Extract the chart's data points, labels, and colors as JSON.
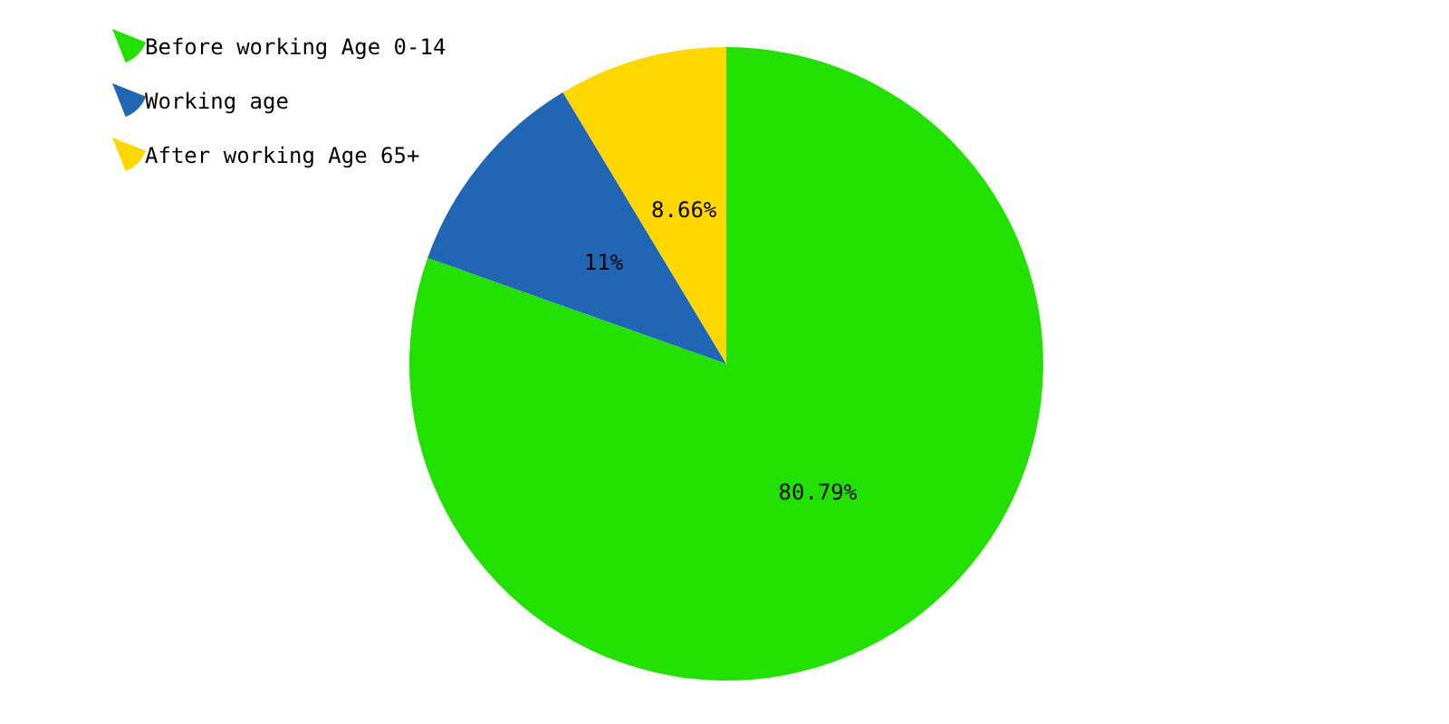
{
  "chart_data": {
    "type": "pie",
    "categories": [
      "Before working Age 0-14",
      "Working age",
      "After working Age 65+"
    ],
    "values": [
      80.79,
      11,
      8.66
    ],
    "colors": [
      "#22e000",
      "#2066b4",
      "#ffd700"
    ],
    "value_labels": [
      "80.79%",
      "11%",
      "8.66%"
    ],
    "legend": "top left"
  }
}
